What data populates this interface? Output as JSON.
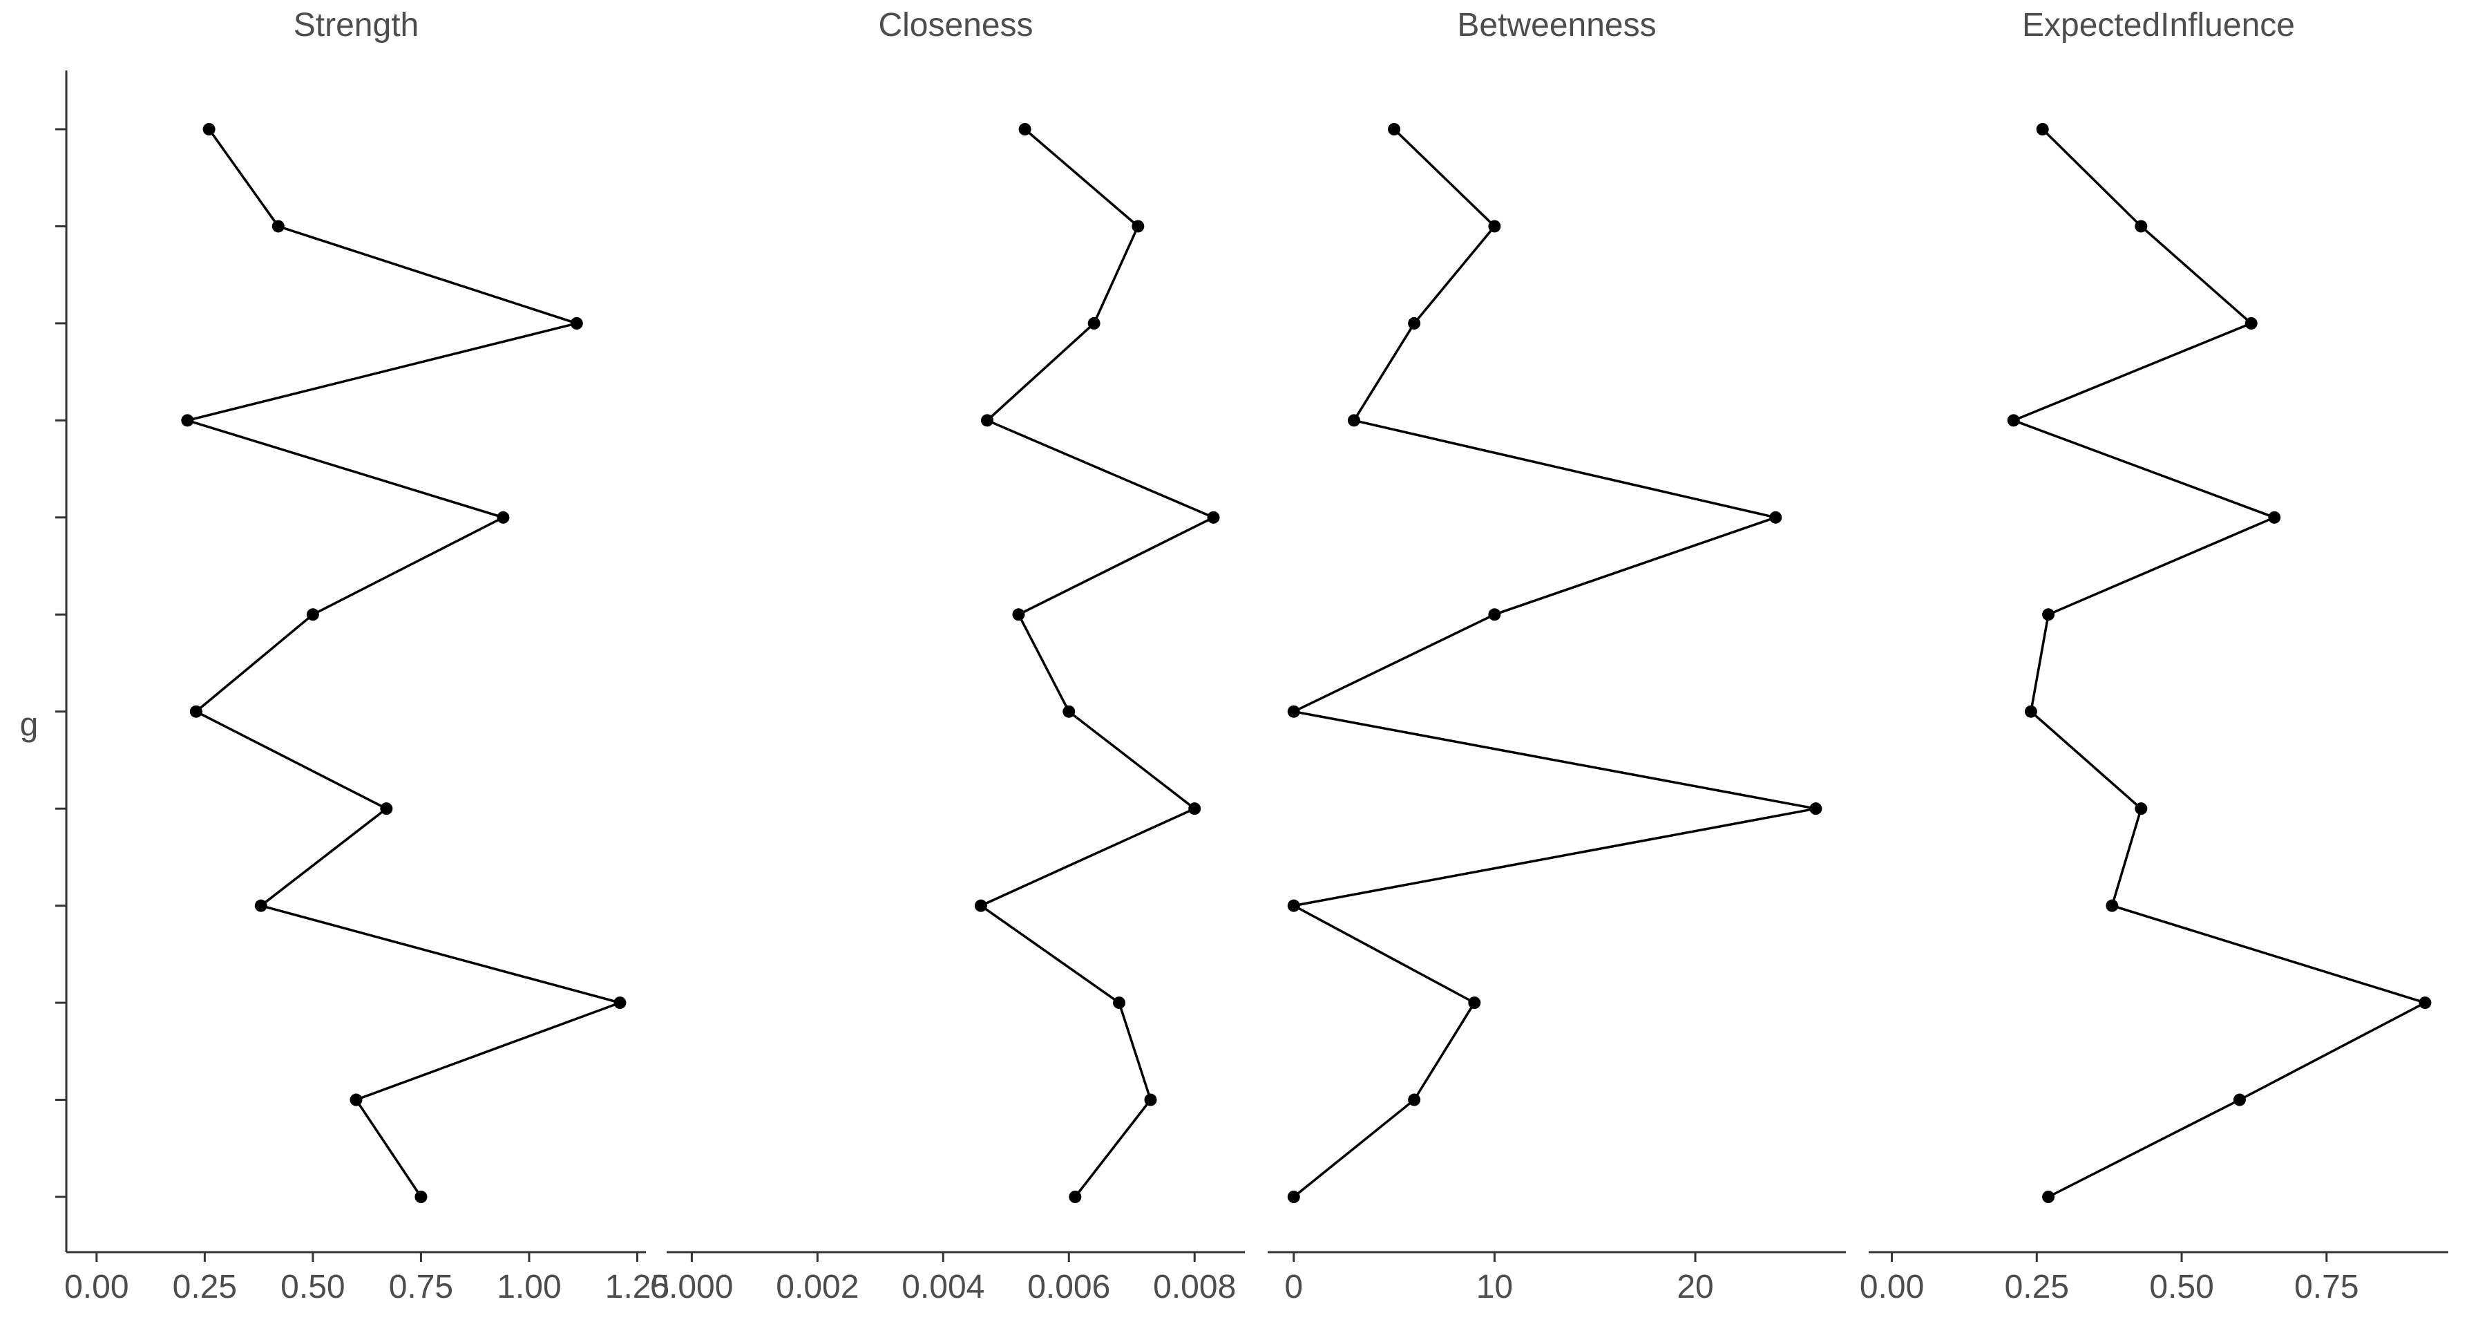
{
  "chart_data": {
    "type": "line",
    "orientation": "horizontal-values",
    "y_axis_label": "g",
    "n_points": 12,
    "grid": false,
    "legend": "none",
    "colors": {
      "line": "#000000",
      "point": "#000000",
      "axis": "#333333",
      "text": "#4d4d4d",
      "background": "#ffffff"
    },
    "panels": [
      {
        "title": "Strength",
        "xlim": [
          -0.07,
          1.27
        ],
        "ticks": [
          0.0,
          0.25,
          0.5,
          0.75,
          1.0,
          1.25
        ],
        "tick_labels": [
          "0.00",
          "0.25",
          "0.50",
          "0.75",
          "1.00",
          "1.25"
        ],
        "values": [
          0.26,
          0.42,
          1.11,
          0.21,
          0.94,
          0.5,
          0.23,
          0.67,
          0.38,
          1.21,
          0.6,
          0.75
        ]
      },
      {
        "title": "Closeness",
        "xlim": [
          -0.0004,
          0.0088
        ],
        "ticks": [
          0.0,
          0.002,
          0.004,
          0.006,
          0.008
        ],
        "tick_labels": [
          "0.000",
          "0.002",
          "0.004",
          "0.006",
          "0.008"
        ],
        "values": [
          0.0053,
          0.0071,
          0.0064,
          0.0047,
          0.0083,
          0.0052,
          0.006,
          0.008,
          0.0046,
          0.0068,
          0.0073,
          0.0061
        ]
      },
      {
        "title": "Betweenness",
        "xlim": [
          -1.3,
          27.5
        ],
        "ticks": [
          0,
          10,
          20
        ],
        "tick_labels": [
          "0",
          "10",
          "20"
        ],
        "values": [
          5,
          10,
          6,
          3,
          24,
          10,
          0,
          26,
          0,
          9,
          6,
          0
        ]
      },
      {
        "title": "ExpectedInfluence",
        "xlim": [
          -0.04,
          0.96
        ],
        "ticks": [
          0.0,
          0.25,
          0.5,
          0.75
        ],
        "tick_labels": [
          "0.00",
          "0.25",
          "0.50",
          "0.75"
        ],
        "values": [
          0.26,
          0.43,
          0.62,
          0.21,
          0.66,
          0.27,
          0.24,
          0.43,
          0.38,
          0.92,
          0.6,
          0.27
        ]
      }
    ]
  }
}
